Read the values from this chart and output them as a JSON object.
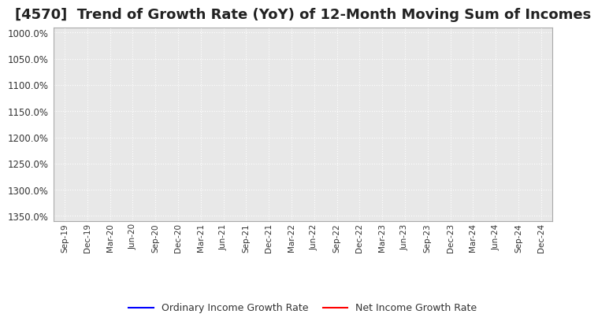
{
  "title": "[4570]  Trend of Growth Rate (YoY) of 12-Month Moving Sum of Incomes",
  "title_fontsize": 13,
  "title_color": "#222222",
  "background_color": "#ffffff",
  "plot_bg_color": "#e8e8e8",
  "grid_color": "#ffffff",
  "grid_style": ":",
  "grid_linewidth": 0.8,
  "x_labels": [
    "Sep-19",
    "Dec-19",
    "Mar-20",
    "Jun-20",
    "Sep-20",
    "Dec-20",
    "Mar-21",
    "Jun-21",
    "Sep-21",
    "Dec-21",
    "Mar-22",
    "Jun-22",
    "Sep-22",
    "Dec-22",
    "Mar-23",
    "Jun-23",
    "Sep-23",
    "Dec-23",
    "Mar-24",
    "Jun-24",
    "Sep-24",
    "Dec-24"
  ],
  "y_min": 1000.0,
  "y_max": 1350.0,
  "y_tick_step": 50.0,
  "ordinary_income_color": "#0000ff",
  "net_income_color": "#ff0000",
  "legend_ordinary": "Ordinary Income Growth Rate",
  "legend_net": "Net Income Growth Rate",
  "line_width": 1.5,
  "ordinary_income_data": [],
  "net_income_data": []
}
